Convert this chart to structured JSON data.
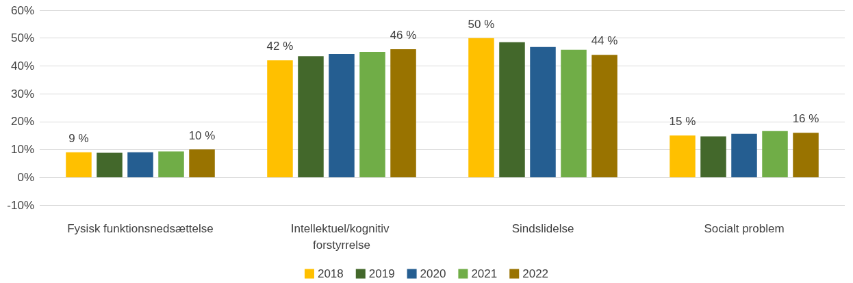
{
  "chart_data": {
    "type": "bar",
    "categories": [
      "Fysisk funktionsnedsættelse",
      "Intellektuel/kognitiv forstyrrelse",
      "Sindslidelse",
      "Socialt problem"
    ],
    "series": [
      {
        "name": "2018",
        "color": "#ffc000",
        "values": [
          9,
          42,
          50,
          15
        ],
        "value_labels": [
          "9 %",
          "42 %",
          "50 %",
          "15 %"
        ]
      },
      {
        "name": "2019",
        "color": "#43682b",
        "values": [
          8.8,
          43.5,
          48.5,
          14.7
        ],
        "value_labels": [
          null,
          null,
          null,
          null
        ]
      },
      {
        "name": "2020",
        "color": "#255e91",
        "values": [
          9,
          44.3,
          46.8,
          15.6
        ],
        "value_labels": [
          null,
          null,
          null,
          null
        ]
      },
      {
        "name": "2021",
        "color": "#70ad47",
        "values": [
          9.3,
          45,
          45.8,
          16.6
        ],
        "value_labels": [
          null,
          null,
          null,
          null
        ]
      },
      {
        "name": "2022",
        "color": "#997300",
        "values": [
          10,
          46,
          44,
          16
        ],
        "value_labels": [
          "10 %",
          "46 %",
          "44 %",
          "16 %"
        ]
      }
    ],
    "ylim": [
      -10,
      60
    ],
    "yticks": [
      {
        "value": -10,
        "label": "-10%"
      },
      {
        "value": 0,
        "label": "0%"
      },
      {
        "value": 10,
        "label": "10%"
      },
      {
        "value": 20,
        "label": "20%"
      },
      {
        "value": 30,
        "label": "30%"
      },
      {
        "value": 40,
        "label": "40%"
      },
      {
        "value": 50,
        "label": "50%"
      },
      {
        "value": 60,
        "label": "60%"
      }
    ],
    "grid": "y",
    "legend": "bottom"
  }
}
